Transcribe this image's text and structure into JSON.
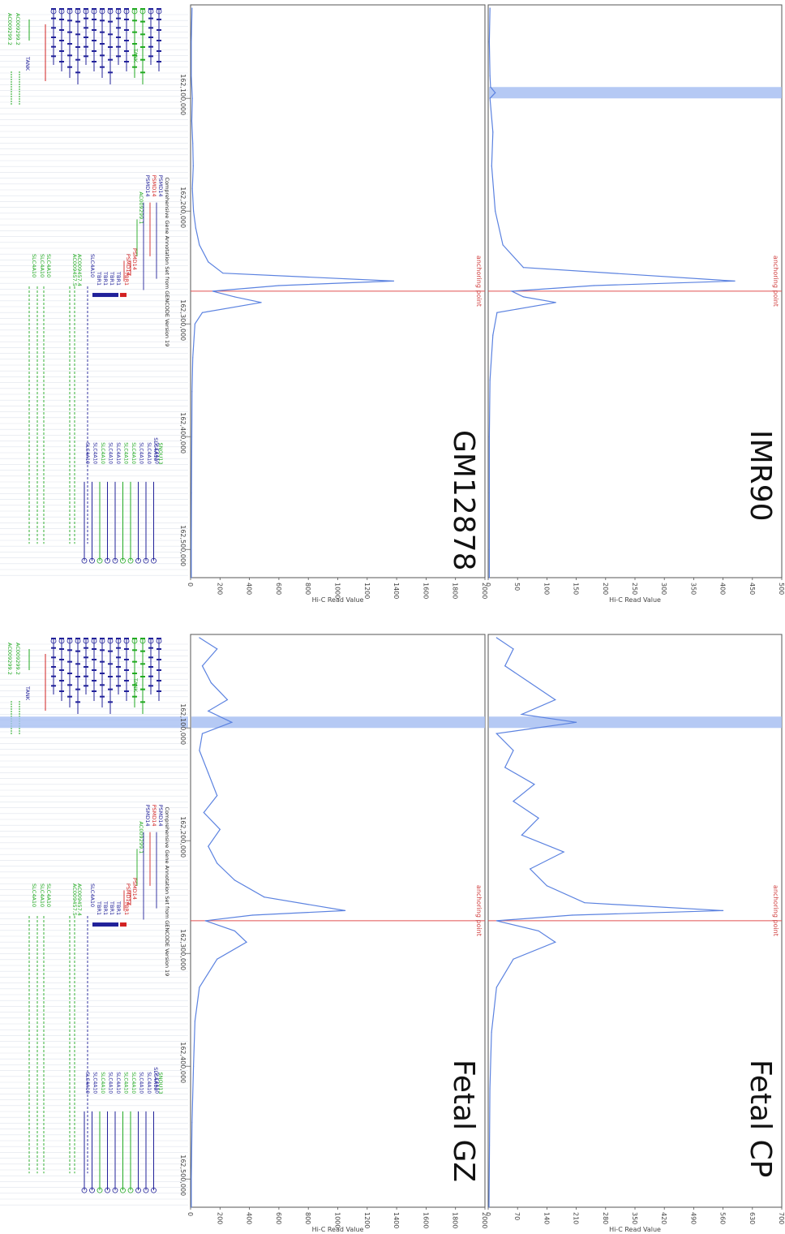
{
  "gene_track": {
    "title": "Comprehensive Gene Annotation Set from GENCODE Version 19",
    "genes": [
      {
        "name": "AC009299.2",
        "color": "#22aa22",
        "start": 162060000,
        "end": 162105000
      },
      {
        "name": "AC009299.2",
        "color": "#22aa22",
        "start": 162060000,
        "end": 162105000
      },
      {
        "name": "TANK",
        "color": "#22229a",
        "start": 162060000,
        "end": 162082000
      },
      {
        "name": "TANK",
        "color": "#22aa22",
        "start": 162080000,
        "end": 162084000
      },
      {
        "name": "PSMD14",
        "color": "#22229a",
        "start": 162165000,
        "end": 162260000
      },
      {
        "name": "PSMD14",
        "color": "#d22222",
        "start": 162165000,
        "end": 162240000
      },
      {
        "name": "PSMD14",
        "color": "#22229a",
        "start": 162165000,
        "end": 162270000
      },
      {
        "name": "AC009299.1",
        "color": "#22aa22",
        "start": 162180000,
        "end": 162240000
      },
      {
        "name": "PSMD14",
        "color": "#d22222",
        "start": 162230000,
        "end": 162244000
      },
      {
        "name": "PSMD14",
        "color": "#d22222",
        "start": 162235000,
        "end": 162244000
      },
      {
        "name": "SLC4A10",
        "color": "#22229a",
        "start": 162320000,
        "end": 162495000
      },
      {
        "name": "SNOU13",
        "color": "#22aa22",
        "start": 162398000,
        "end": 162402000
      }
    ],
    "left_genes": [
      "AC009457.5",
      "AC009457.4",
      "SLC4A10",
      "SLC4A10",
      "SLC4A10",
      "TBR1",
      "TBR1",
      "TBR1",
      "TBR1",
      "TBR1",
      "SLC4A10"
    ]
  },
  "axis": {
    "ticks": [
      "162,100,000",
      "162,200,000",
      "162,300,000",
      "162,400,000",
      "162,500,000"
    ],
    "anchor_label": "anchoring point",
    "ylabel": "Hi-C Read Value"
  },
  "chart_data": [
    {
      "type": "line",
      "title": "GM12878",
      "ylabel": "Hi-C Read Value",
      "xlim": [
        162020000,
        162525000
      ],
      "ylim": [
        0,
        2000
      ],
      "yticks": [
        "0",
        "200",
        "400",
        "600",
        "800",
        "1000",
        "1200",
        "1400",
        "1600",
        "1800",
        "2000"
      ],
      "anchor": 162271000,
      "highlight": null,
      "x": [
        162020000,
        162050000,
        162080000,
        162100000,
        162120000,
        162140000,
        162160000,
        162180000,
        162200000,
        162215000,
        162230000,
        162245000,
        162255000,
        162262000,
        162266000,
        162271000,
        162276000,
        162281000,
        162290000,
        162300000,
        162330000,
        162360000,
        162400000,
        162450000,
        162500000,
        162525000
      ],
      "values": [
        10,
        5,
        5,
        12,
        8,
        15,
        18,
        12,
        20,
        35,
        60,
        120,
        220,
        1380,
        600,
        150,
        300,
        480,
        80,
        30,
        15,
        10,
        8,
        6,
        5,
        5
      ]
    },
    {
      "type": "line",
      "title": "IMR90",
      "ylabel": "Hi-C Read Value",
      "xlim": [
        162020000,
        162525000
      ],
      "ylim": [
        0,
        500
      ],
      "yticks": [
        "0",
        "50",
        "100",
        "150",
        "200",
        "250",
        "300",
        "350",
        "400",
        "450",
        "500"
      ],
      "anchor": 162271000,
      "highlight": 162095000,
      "x": [
        162020000,
        162050000,
        162080000,
        162090000,
        162095000,
        162100000,
        162130000,
        162160000,
        162200000,
        162230000,
        162250000,
        162262000,
        162266000,
        162271000,
        162276000,
        162281000,
        162290000,
        162310000,
        162350000,
        162400000,
        162450000,
        162500000,
        162525000
      ],
      "values": [
        3,
        2,
        3,
        4,
        12,
        3,
        8,
        6,
        12,
        25,
        60,
        420,
        180,
        40,
        60,
        115,
        15,
        8,
        3,
        2,
        2,
        2,
        2
      ]
    },
    {
      "type": "line",
      "title": "Fetal GZ",
      "ylabel": "Hi-C Read Value",
      "xlim": [
        162020000,
        162525000
      ],
      "ylim": [
        0,
        2000
      ],
      "yticks": [
        "0",
        "200",
        "400",
        "600",
        "800",
        "1000",
        "1200",
        "1400",
        "1600",
        "1800",
        "2000"
      ],
      "anchor": 162271000,
      "highlight": 162095000,
      "x": [
        162020000,
        162030000,
        162045000,
        162060000,
        162075000,
        162085000,
        162095000,
        162105000,
        162120000,
        162140000,
        162160000,
        162175000,
        162190000,
        162205000,
        162220000,
        162235000,
        162250000,
        162262000,
        162266000,
        162271000,
        162280000,
        162290000,
        162305000,
        162330000,
        162360000,
        162400000,
        162450000,
        162500000,
        162525000
      ],
      "values": [
        60,
        180,
        80,
        140,
        250,
        120,
        280,
        80,
        60,
        120,
        180,
        90,
        200,
        120,
        180,
        300,
        500,
        1050,
        420,
        100,
        300,
        380,
        180,
        60,
        30,
        20,
        10,
        5,
        5
      ]
    },
    {
      "type": "line",
      "title": "Fetal CP",
      "ylabel": "Hi-C Read Value",
      "xlim": [
        162020000,
        162525000
      ],
      "ylim": [
        0,
        700
      ],
      "yticks": [
        "0",
        "70",
        "140",
        "210",
        "280",
        "350",
        "420",
        "490",
        "560",
        "630",
        "700"
      ],
      "anchor": 162271000,
      "highlight": 162095000,
      "x": [
        162020000,
        162030000,
        162045000,
        162060000,
        162075000,
        162088000,
        162095000,
        162105000,
        162120000,
        162135000,
        162150000,
        162165000,
        162180000,
        162195000,
        162210000,
        162225000,
        162240000,
        162255000,
        162262000,
        162266000,
        162271000,
        162280000,
        162290000,
        162305000,
        162330000,
        162370000,
        162420000,
        162470000,
        162525000
      ],
      "values": [
        20,
        60,
        40,
        100,
        160,
        80,
        210,
        20,
        60,
        40,
        110,
        60,
        120,
        80,
        180,
        100,
        140,
        230,
        560,
        200,
        20,
        120,
        160,
        60,
        20,
        8,
        4,
        3,
        2
      ]
    }
  ]
}
